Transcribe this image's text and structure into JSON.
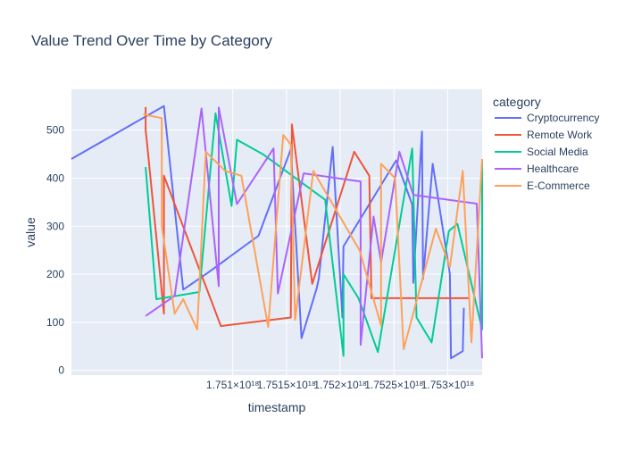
{
  "chart_data": {
    "type": "line",
    "title": "Value Trend Over Time by Category",
    "xlabel": "timestamp",
    "ylabel": "value",
    "xlim": [
      1.7495e+18,
      1.75332e+18
    ],
    "ylim": [
      -10,
      585
    ],
    "x_ticks": [
      1.751e+18,
      1.7515e+18,
      1.752e+18,
      1.7525e+18,
      1.753e+18
    ],
    "x_tick_labels": [
      "1.751×10¹⁸",
      "1.7515×10¹⁸",
      "1.752×10¹⁸",
      "1.7525×10¹⁸",
      "1.753×10¹⁸"
    ],
    "y_ticks": [
      0,
      100,
      200,
      300,
      400,
      500
    ],
    "y_tick_labels": [
      "0",
      "100",
      "200",
      "300",
      "400",
      "500"
    ],
    "legend_title": "category",
    "legend_position": "right",
    "grid": true,
    "colors": {
      "plot_bg": "#e5ecf6",
      "grid": "#ffffff",
      "text": "#2a3f5f"
    },
    "series": [
      {
        "name": "Cryptocurrency",
        "color": "#636efa",
        "x": [
          1.7495e+18,
          1.75036e+18,
          1.75054e+18,
          1.75075e+18,
          1.75124e+18,
          1.75154e+18,
          1.75164e+18,
          1.75178e+18,
          1.7518e+18,
          1.75193e+18,
          1.75202e+18,
          1.75203e+18,
          1.75252e+18,
          1.75267e+18,
          1.75268e+18,
          1.75276e+18,
          1.75277e+18,
          1.75286e+18,
          1.75302e+18,
          1.75303e+18,
          1.75314e+18,
          1.75315e+18
        ],
        "y": [
          440,
          550,
          168,
          200,
          280,
          460,
          67,
          170,
          190,
          465,
          110,
          258,
          437,
          345,
          182,
          497,
          190,
          430,
          200,
          25,
          40,
          130
        ]
      },
      {
        "name": "Remote Work",
        "color": "#ef553b",
        "x": [
          1.75019e+18,
          1.75019e+18,
          1.7502e+18,
          1.75036e+18,
          1.75036e+18,
          1.75089e+18,
          1.75154e+18,
          1.75155e+18,
          1.75174e+18,
          1.75213e+18,
          1.75227e+18,
          1.75229e+18,
          1.7532e+18
        ],
        "y": [
          548,
          500,
          480,
          118,
          405,
          92,
          110,
          512,
          180,
          455,
          405,
          150,
          150
        ]
      },
      {
        "name": "Social Media",
        "color": "#00cc96",
        "x": [
          1.75019e+18,
          1.75029e+18,
          1.75069e+18,
          1.75084e+18,
          1.75099e+18,
          1.75104e+18,
          1.75128e+18,
          1.75186e+18,
          1.75203e+18,
          1.75203e+18,
          1.75217e+18,
          1.75235e+18,
          1.75267e+18,
          1.75271e+18,
          1.75285e+18,
          1.75301e+18,
          1.75309e+18,
          1.75332e+18,
          1.75332e+18
        ],
        "y": [
          423,
          148,
          163,
          535,
          342,
          480,
          450,
          355,
          30,
          200,
          150,
          38,
          462,
          110,
          58,
          290,
          305,
          85,
          440
        ]
      },
      {
        "name": "Healthcare",
        "color": "#ab63fa",
        "x": [
          1.75019e+18,
          1.75046e+18,
          1.75071e+18,
          1.75087e+18,
          1.75087e+18,
          1.75104e+18,
          1.75138e+18,
          1.75142e+18,
          1.75166e+18,
          1.75219e+18,
          1.75219e+18,
          1.75231e+18,
          1.75238e+18,
          1.75255e+18,
          1.75268e+18,
          1.75327e+18,
          1.75332e+18
        ],
        "y": [
          113,
          155,
          545,
          175,
          547,
          346,
          462,
          160,
          410,
          393,
          53,
          320,
          225,
          455,
          365,
          347,
          25
        ]
      },
      {
        "name": "E-Commerce",
        "color": "#ffa15a",
        "x": [
          1.75017e+18,
          1.75034e+18,
          1.75034e+18,
          1.75046e+18,
          1.75054e+18,
          1.75067e+18,
          1.75075e+18,
          1.75093e+18,
          1.75108e+18,
          1.75133e+18,
          1.75147e+18,
          1.75154e+18,
          1.75158e+18,
          1.75175e+18,
          1.75218e+18,
          1.75238e+18,
          1.75238e+18,
          1.75251e+18,
          1.75259e+18,
          1.75289e+18,
          1.75302e+18,
          1.75314e+18,
          1.75322e+18,
          1.75332e+18
        ],
        "y": [
          533,
          525,
          300,
          118,
          148,
          85,
          455,
          415,
          405,
          90,
          490,
          470,
          105,
          415,
          250,
          93,
          430,
          400,
          44,
          295,
          215,
          415,
          58,
          440
        ]
      }
    ]
  }
}
